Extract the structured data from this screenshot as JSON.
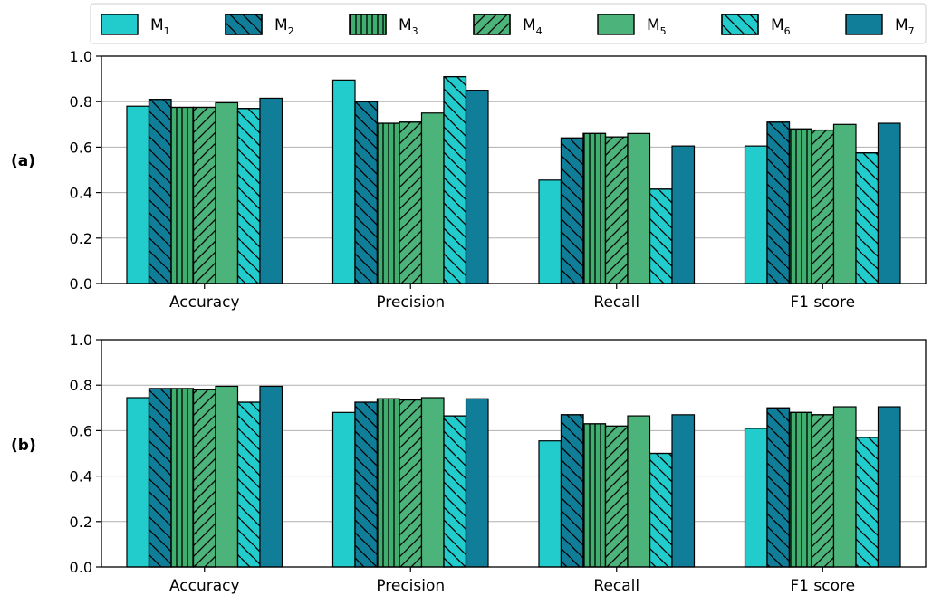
{
  "colors": {
    "M1": "#22cccc",
    "M2": "#107e99",
    "M3": "#3fae6f",
    "M4": "#4cb47a",
    "M5": "#4cb47a",
    "M6": "#22cccc",
    "M7": "#107e99",
    "grid": "#b0b0b0"
  },
  "legend": [
    {
      "base": "M",
      "sub": "1",
      "hatch": "none"
    },
    {
      "base": "M",
      "sub": "2",
      "hatch": "back"
    },
    {
      "base": "M",
      "sub": "3",
      "hatch": "vertical"
    },
    {
      "base": "M",
      "sub": "4",
      "hatch": "forward"
    },
    {
      "base": "M",
      "sub": "5",
      "hatch": "none"
    },
    {
      "base": "M",
      "sub": "6",
      "hatch": "back"
    },
    {
      "base": "M",
      "sub": "7",
      "hatch": "none"
    }
  ],
  "chart_data": [
    {
      "type": "bar",
      "panel_label": "(a)",
      "categories": [
        "Accuracy",
        "Precision",
        "Recall",
        "F1 score"
      ],
      "ylim": [
        0.0,
        1.0
      ],
      "yticks": [
        "0.0",
        "0.2",
        "0.4",
        "0.6",
        "0.8",
        "1.0"
      ],
      "grid": true,
      "legend_position": "top",
      "series": [
        {
          "name": "M1",
          "values": [
            0.78,
            0.895,
            0.455,
            0.605
          ]
        },
        {
          "name": "M2",
          "values": [
            0.81,
            0.8,
            0.64,
            0.71
          ]
        },
        {
          "name": "M3",
          "values": [
            0.775,
            0.705,
            0.66,
            0.68
          ]
        },
        {
          "name": "M4",
          "values": [
            0.775,
            0.71,
            0.645,
            0.675
          ]
        },
        {
          "name": "M5",
          "values": [
            0.795,
            0.75,
            0.66,
            0.7
          ]
        },
        {
          "name": "M6",
          "values": [
            0.77,
            0.91,
            0.415,
            0.575
          ]
        },
        {
          "name": "M7",
          "values": [
            0.815,
            0.85,
            0.605,
            0.705
          ]
        }
      ]
    },
    {
      "type": "bar",
      "panel_label": "(b)",
      "categories": [
        "Accuracy",
        "Precision",
        "Recall",
        "F1 score"
      ],
      "ylim": [
        0.0,
        1.0
      ],
      "yticks": [
        "0.0",
        "0.2",
        "0.4",
        "0.6",
        "0.8",
        "1.0"
      ],
      "grid": true,
      "series": [
        {
          "name": "M1",
          "values": [
            0.745,
            0.68,
            0.555,
            0.61
          ]
        },
        {
          "name": "M2",
          "values": [
            0.785,
            0.725,
            0.67,
            0.7
          ]
        },
        {
          "name": "M3",
          "values": [
            0.785,
            0.74,
            0.63,
            0.68
          ]
        },
        {
          "name": "M4",
          "values": [
            0.78,
            0.735,
            0.62,
            0.67
          ]
        },
        {
          "name": "M5",
          "values": [
            0.795,
            0.745,
            0.665,
            0.705
          ]
        },
        {
          "name": "M6",
          "values": [
            0.725,
            0.665,
            0.5,
            0.57
          ]
        },
        {
          "name": "M7",
          "values": [
            0.795,
            0.74,
            0.67,
            0.705
          ]
        }
      ]
    }
  ]
}
